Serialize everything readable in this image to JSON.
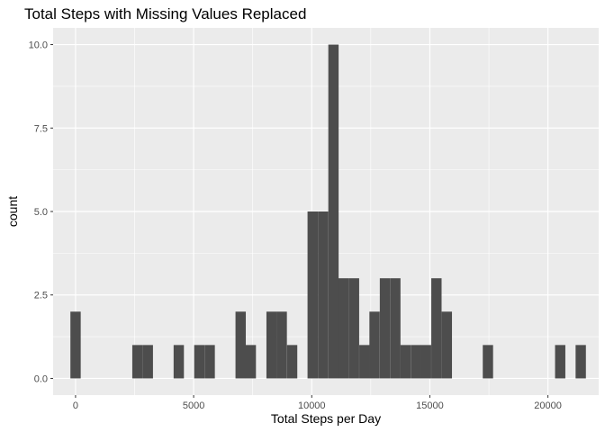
{
  "chart_data": {
    "type": "bar",
    "title": "Total Steps with Missing Values Replaced",
    "xlabel": "Total Steps per Day",
    "ylabel": "count",
    "xlim": [
      -950,
      22150
    ],
    "ylim": [
      -0.5,
      10.5
    ],
    "x_ticks": [
      0,
      5000,
      10000,
      15000,
      20000
    ],
    "x_tick_labels": [
      "0",
      "5000",
      "10000",
      "15000",
      "20000"
    ],
    "y_ticks": [
      0,
      2.5,
      5,
      7.5,
      10
    ],
    "y_tick_labels": [
      "0.0",
      "2.5",
      "5.0",
      "7.5",
      "10.0"
    ],
    "bin_width": 436,
    "bins": [
      {
        "center": 0,
        "count": 2
      },
      {
        "center": 2620,
        "count": 1
      },
      {
        "center": 3060,
        "count": 1
      },
      {
        "center": 4370,
        "count": 1
      },
      {
        "center": 5240,
        "count": 1
      },
      {
        "center": 5680,
        "count": 1
      },
      {
        "center": 6990,
        "count": 2
      },
      {
        "center": 7420,
        "count": 1
      },
      {
        "center": 8300,
        "count": 2
      },
      {
        "center": 8730,
        "count": 2
      },
      {
        "center": 9170,
        "count": 1
      },
      {
        "center": 10040,
        "count": 5
      },
      {
        "center": 10480,
        "count": 5
      },
      {
        "center": 10920,
        "count": 10
      },
      {
        "center": 11350,
        "count": 3
      },
      {
        "center": 11790,
        "count": 3
      },
      {
        "center": 12230,
        "count": 1
      },
      {
        "center": 12660,
        "count": 2
      },
      {
        "center": 13100,
        "count": 3
      },
      {
        "center": 13540,
        "count": 3
      },
      {
        "center": 13970,
        "count": 1
      },
      {
        "center": 14410,
        "count": 1
      },
      {
        "center": 14840,
        "count": 1
      },
      {
        "center": 15280,
        "count": 3
      },
      {
        "center": 15720,
        "count": 2
      },
      {
        "center": 17460,
        "count": 1
      },
      {
        "center": 20520,
        "count": 1
      },
      {
        "center": 21390,
        "count": 1
      }
    ],
    "colors": {
      "panel_background": "#ebebeb",
      "grid_major": "#ffffff",
      "bar_fill": "#4d4d4d",
      "tick_mark": "#333333"
    }
  }
}
